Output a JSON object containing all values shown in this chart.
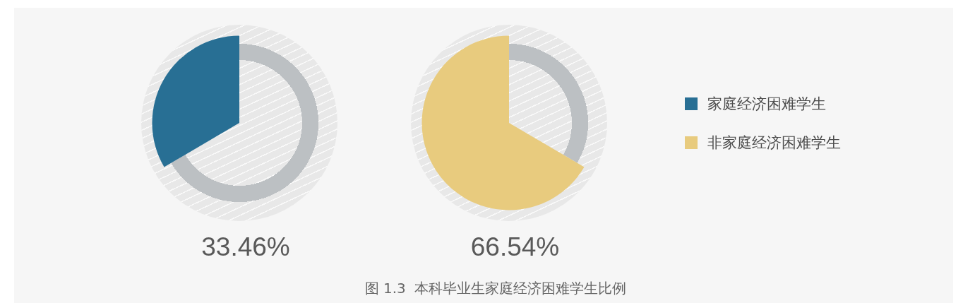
{
  "chart_data": [
    {
      "type": "pie",
      "categories": [
        null,
        "家庭经济困难学生"
      ],
      "values": [
        66.54,
        33.46
      ],
      "colors": [
        "#bcc0c3",
        "#286f94"
      ],
      "legend": "right",
      "annotations": [
        "33.46%",
        "图 1.3  本科毕业生家庭经济困难学生比例"
      ]
    },
    {
      "type": "pie",
      "categories": [
        null,
        "非家庭经济困难学生"
      ],
      "values": [
        33.46,
        66.54
      ],
      "colors": [
        "#bcc0c3",
        "#e8cb7e"
      ],
      "legend": "right",
      "annotations": [
        "66.54%"
      ]
    }
  ]
}
